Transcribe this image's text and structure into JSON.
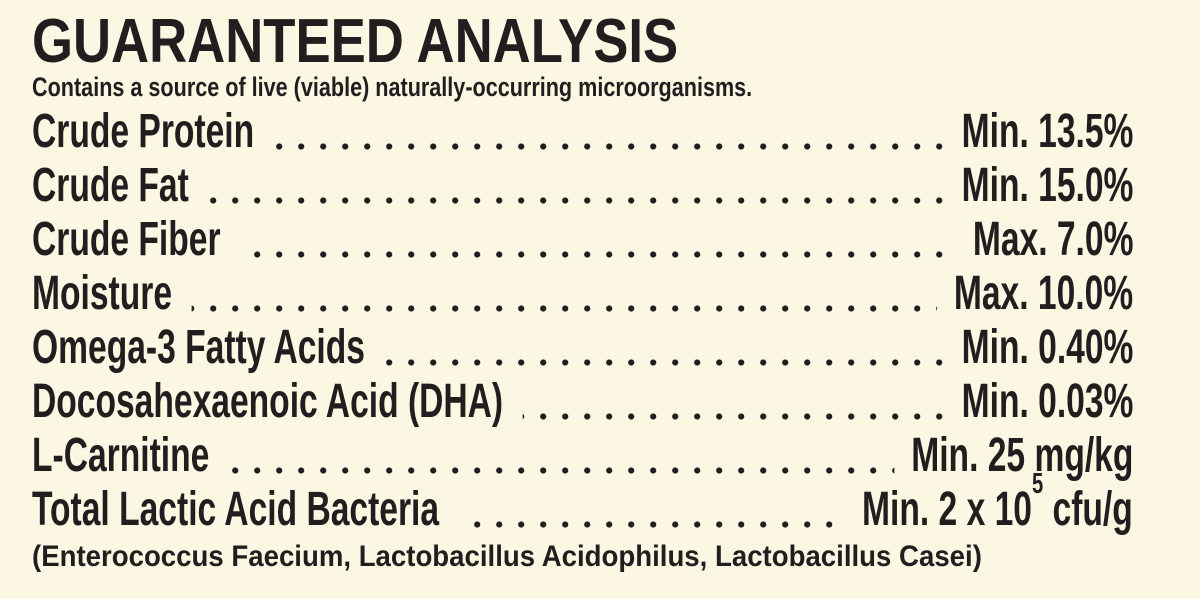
{
  "colors": {
    "background": "#fbf7e3",
    "ink": "#221e1f"
  },
  "header": {
    "title": "GUARANTEED ANALYSIS",
    "subtitle": "Contains a source of live (viable) naturally-occurring microorganisms."
  },
  "analysis": {
    "rows": [
      {
        "label": "Crude Protein",
        "value": "Min. 13.5%"
      },
      {
        "label": "Crude Fat",
        "value": "Min. 15.0%"
      },
      {
        "label": "Crude Fiber",
        "value": "Max. 7.0%"
      },
      {
        "label": "Moisture",
        "value": "Max. 10.0%"
      },
      {
        "label": "Omega-3 Fatty Acids",
        "value": "Min. 0.40%"
      },
      {
        "label": "Docosahexaenoic Acid (DHA)",
        "value": "Min. 0.03%"
      },
      {
        "label": "L-Carnitine",
        "value": "Min. 25 mg/kg"
      },
      {
        "label": "Total Lactic Acid Bacteria",
        "value_prefix": "Min. 2 x 10",
        "value_sup": "5",
        "value_suffix": " cfu/g"
      }
    ],
    "footnote": "(Enterococcus Faecium, Lactobacillus Acidophilus, Lactobacillus Casei)"
  }
}
